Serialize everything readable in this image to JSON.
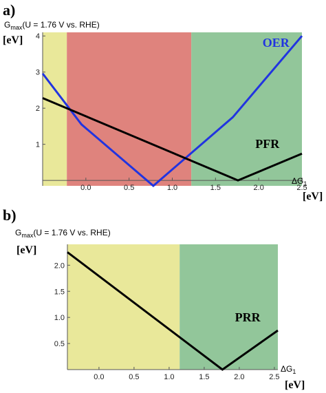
{
  "panels": [
    {
      "letter": "a)",
      "ytitle_main": "G",
      "ytitle_sub": "max",
      "ytitle_rest": "(U = 1.76  V vs. RHE)",
      "yunit": "[eV]",
      "xlabel_main": "ΔG",
      "xlabel_sub": "1",
      "xunit": "[eV]"
    },
    {
      "letter": "b)",
      "ytitle_main": "G",
      "ytitle_sub": "max",
      "ytitle_rest": "(U = 1.76  V vs. RHE)",
      "yunit": "[eV]",
      "xlabel_main": "ΔG",
      "xlabel_sub": "1",
      "xunit": "[eV]"
    }
  ],
  "chart_data": [
    {
      "type": "line",
      "xlim": [
        -0.5,
        2.5
      ],
      "ylim": [
        -0.15,
        4.1
      ],
      "xticks": [
        0.0,
        0.5,
        1.0,
        1.5,
        2.0,
        2.5
      ],
      "xtick_labels": [
        "0.0",
        "0.5",
        "1.0",
        "1.5",
        "2.0",
        "2.5"
      ],
      "yticks": [
        1,
        2,
        3,
        4
      ],
      "ytick_labels": [
        "1",
        "2",
        "3",
        "4"
      ],
      "regions": [
        {
          "x0": -0.5,
          "x1": -0.22,
          "color": "#e9e89a"
        },
        {
          "x0": -0.22,
          "x1": 1.22,
          "color": "#df837d"
        },
        {
          "x0": 1.22,
          "x1": 2.5,
          "color": "#92c69a"
        }
      ],
      "series": [
        {
          "name": "OER",
          "color": "#2134e0",
          "label_pos": [
            2.2,
            3.7
          ],
          "x": [
            -0.5,
            -0.05,
            0.78,
            1.7,
            2.5
          ],
          "y": [
            2.96,
            1.55,
            -0.15,
            1.75,
            4.0
          ]
        },
        {
          "name": "PFR",
          "color": "#000000",
          "label_pos": [
            2.1,
            0.9
          ],
          "x": [
            -0.5,
            1.76,
            2.5
          ],
          "y": [
            2.28,
            0.0,
            0.74
          ]
        }
      ]
    },
    {
      "type": "line",
      "xlim": [
        -0.45,
        2.55
      ],
      "ylim": [
        0.0,
        2.4
      ],
      "xticks": [
        0.0,
        0.5,
        1.0,
        1.5,
        2.0,
        2.5
      ],
      "xtick_labels": [
        "0.0",
        "0.5",
        "1.0",
        "1.5",
        "2.0",
        "2.5"
      ],
      "yticks": [
        0.5,
        1.0,
        1.5,
        2.0
      ],
      "ytick_labels": [
        "0.5",
        "1.0",
        "1.5",
        "2.0"
      ],
      "regions": [
        {
          "x0": -0.45,
          "x1": 1.15,
          "color": "#e9e89a"
        },
        {
          "x0": 1.15,
          "x1": 2.55,
          "color": "#92c69a"
        }
      ],
      "series": [
        {
          "name": "PRR",
          "color": "#000000",
          "label_pos": [
            2.12,
            0.92
          ],
          "x": [
            -0.45,
            1.76,
            2.55
          ],
          "y": [
            2.25,
            0.0,
            0.75
          ]
        }
      ]
    }
  ]
}
